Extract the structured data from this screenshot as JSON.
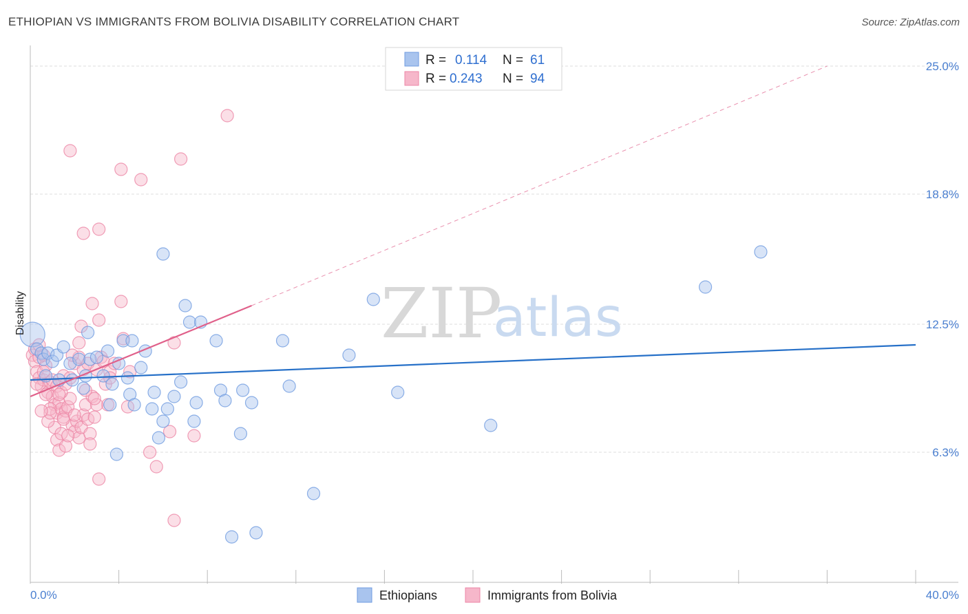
{
  "title": "ETHIOPIAN VS IMMIGRANTS FROM BOLIVIA DISABILITY CORRELATION CHART",
  "source": "Source: ZipAtlas.com",
  "watermark": {
    "zip": "ZIP",
    "atlas": "atlas"
  },
  "colors": {
    "blue_fill": "#a9c4ee",
    "blue_stroke": "#6f9be0",
    "blue_line": "#2670c8",
    "pink_fill": "#f6b7ca",
    "pink_stroke": "#ec86a5",
    "pink_line": "#e0608a",
    "grid": "#dddddd",
    "axis": "#bbbbbb",
    "tick_label": "#4a7fd0"
  },
  "chart_data": {
    "type": "scatter",
    "title": "ETHIOPIAN VS IMMIGRANTS FROM BOLIVIA DISABILITY CORRELATION CHART",
    "xlabel": "",
    "ylabel": "Disability",
    "xlim": [
      0,
      40
    ],
    "ylim": [
      0,
      25.6
    ],
    "x_tick_labels": [
      "0.0%",
      "40.0%"
    ],
    "y_ticks": [
      6.3,
      12.5,
      18.8,
      25.0
    ],
    "y_tick_labels": [
      "6.3%",
      "12.5%",
      "18.8%",
      "25.0%"
    ],
    "grid": true,
    "legend": {
      "placement": "top-center",
      "entries": [
        {
          "r_label": "R =",
          "r_value": "0.114",
          "n_label": "N =",
          "n_value": "61"
        },
        {
          "r_label": "R =",
          "r_value": "0.243",
          "n_label": "N =",
          "n_value": "94"
        }
      ]
    },
    "series": [
      {
        "name": "Ethiopians",
        "color": "blue",
        "trend": {
          "x0": 0,
          "y0": 9.8,
          "x1": 40,
          "y1": 11.5,
          "dashed": false
        },
        "points": [
          [
            0.1,
            12.0,
            1
          ],
          [
            0.3,
            11.3,
            0
          ],
          [
            0.5,
            11.1,
            0
          ],
          [
            0.6,
            10.8,
            0
          ],
          [
            0.8,
            11.1,
            0
          ],
          [
            1.0,
            10.7,
            0
          ],
          [
            1.2,
            11.0,
            0
          ],
          [
            1.5,
            11.4,
            0
          ],
          [
            1.8,
            10.6,
            0
          ],
          [
            0.7,
            10.0,
            0
          ],
          [
            1.3,
            9.8,
            0
          ],
          [
            1.9,
            9.8,
            0
          ],
          [
            2.2,
            10.8,
            0
          ],
          [
            2.5,
            10.0,
            0
          ],
          [
            2.4,
            9.4,
            0
          ],
          [
            2.6,
            12.1,
            0
          ],
          [
            2.7,
            10.8,
            0
          ],
          [
            3.0,
            10.9,
            0
          ],
          [
            3.3,
            10.0,
            0
          ],
          [
            3.5,
            11.2,
            0
          ],
          [
            3.7,
            9.6,
            0
          ],
          [
            4.0,
            10.6,
            0
          ],
          [
            4.2,
            11.7,
            0
          ],
          [
            4.4,
            9.9,
            0
          ],
          [
            4.6,
            11.7,
            0
          ],
          [
            5.0,
            10.4,
            0
          ],
          [
            5.2,
            11.2,
            0
          ],
          [
            4.5,
            9.1,
            0
          ],
          [
            4.7,
            8.6,
            0
          ],
          [
            5.6,
            9.2,
            0
          ],
          [
            6.0,
            15.9,
            0
          ],
          [
            6.2,
            8.4,
            0
          ],
          [
            6.5,
            9.0,
            0
          ],
          [
            6.8,
            9.7,
            0
          ],
          [
            7.0,
            13.4,
            0
          ],
          [
            7.2,
            12.6,
            0
          ],
          [
            7.5,
            8.7,
            0
          ],
          [
            7.7,
            12.6,
            0
          ],
          [
            8.4,
            11.7,
            0
          ],
          [
            8.6,
            9.3,
            0
          ],
          [
            8.8,
            8.8,
            0
          ],
          [
            9.6,
            9.3,
            0
          ],
          [
            10.0,
            8.7,
            0
          ],
          [
            6.0,
            7.8,
            0
          ],
          [
            7.4,
            7.8,
            0
          ],
          [
            5.8,
            7.0,
            0
          ],
          [
            9.5,
            7.2,
            0
          ],
          [
            3.9,
            6.2,
            0
          ],
          [
            11.4,
            11.7,
            0
          ],
          [
            11.7,
            9.5,
            0
          ],
          [
            12.8,
            4.3,
            0
          ],
          [
            14.4,
            11.0,
            0
          ],
          [
            15.5,
            13.7,
            0
          ],
          [
            16.6,
            9.2,
            0
          ],
          [
            20.8,
            7.6,
            0
          ],
          [
            30.5,
            14.3,
            0
          ],
          [
            33.0,
            16.0,
            0
          ],
          [
            9.1,
            2.2,
            0
          ],
          [
            10.2,
            2.4,
            0
          ],
          [
            3.6,
            8.6,
            0
          ],
          [
            5.5,
            8.4,
            0
          ]
        ]
      },
      {
        "name": "Immigrants from Bolivia",
        "color": "pink",
        "trend": {
          "x0": 0,
          "y0": 9.0,
          "x1": 10.0,
          "y1": 13.4,
          "dashed": false
        },
        "trend_extension": {
          "x0": 10.0,
          "y0": 13.4,
          "x1": 36.0,
          "y1": 25.0,
          "dashed": true
        },
        "points": [
          [
            0.1,
            11.0,
            0
          ],
          [
            0.2,
            10.7,
            0
          ],
          [
            0.3,
            10.2,
            0
          ],
          [
            0.4,
            9.9,
            0
          ],
          [
            0.5,
            9.5,
            0
          ],
          [
            0.6,
            9.8,
            0
          ],
          [
            0.7,
            10.5,
            0
          ],
          [
            0.8,
            9.2,
            0
          ],
          [
            0.2,
            11.3,
            0
          ],
          [
            0.4,
            10.9,
            0
          ],
          [
            0.6,
            11.0,
            0
          ],
          [
            0.9,
            9.7,
            0
          ],
          [
            1.0,
            9.0,
            0
          ],
          [
            1.1,
            8.6,
            0
          ],
          [
            1.2,
            8.2,
            0
          ],
          [
            1.3,
            8.7,
            0
          ],
          [
            1.4,
            8.4,
            0
          ],
          [
            1.5,
            8.0,
            0
          ],
          [
            1.6,
            8.3,
            0
          ],
          [
            1.7,
            8.5,
            0
          ],
          [
            1.8,
            8.9,
            0
          ],
          [
            1.9,
            7.6,
            0
          ],
          [
            2.0,
            7.3,
            0
          ],
          [
            2.1,
            7.8,
            0
          ],
          [
            2.2,
            7.0,
            0
          ],
          [
            2.3,
            7.5,
            0
          ],
          [
            2.4,
            8.1,
            0
          ],
          [
            2.5,
            8.6,
            0
          ],
          [
            2.6,
            7.9,
            0
          ],
          [
            2.7,
            7.2,
            0
          ],
          [
            2.8,
            9.0,
            0
          ],
          [
            2.9,
            8.0,
            0
          ],
          [
            1.0,
            9.8,
            0
          ],
          [
            1.2,
            9.5,
            0
          ],
          [
            1.4,
            9.2,
            0
          ],
          [
            1.5,
            10.0,
            0
          ],
          [
            1.6,
            9.6,
            0
          ],
          [
            1.8,
            9.9,
            0
          ],
          [
            2.0,
            10.6,
            0
          ],
          [
            2.2,
            10.9,
            0
          ],
          [
            2.4,
            10.3,
            0
          ],
          [
            2.6,
            10.6,
            0
          ],
          [
            3.0,
            10.3,
            0
          ],
          [
            3.2,
            10.9,
            0
          ],
          [
            3.4,
            9.6,
            0
          ],
          [
            3.6,
            10.2,
            0
          ],
          [
            4.2,
            11.8,
            0
          ],
          [
            4.5,
            10.2,
            0
          ],
          [
            0.9,
            8.4,
            0
          ],
          [
            1.1,
            7.5,
            0
          ],
          [
            1.2,
            6.9,
            0
          ],
          [
            1.3,
            6.4,
            0
          ],
          [
            0.8,
            7.8,
            0
          ],
          [
            0.9,
            8.2,
            0
          ],
          [
            1.4,
            7.2,
            0
          ],
          [
            1.6,
            6.6,
            0
          ],
          [
            2.3,
            12.4,
            0
          ],
          [
            2.2,
            11.6,
            0
          ],
          [
            3.1,
            12.7,
            0
          ],
          [
            2.8,
            13.5,
            0
          ],
          [
            4.1,
            13.6,
            0
          ],
          [
            6.5,
            11.6,
            0
          ],
          [
            3.1,
            17.1,
            0
          ],
          [
            2.4,
            16.9,
            0
          ],
          [
            1.8,
            20.9,
            0
          ],
          [
            4.1,
            20.0,
            0
          ],
          [
            5.0,
            19.5,
            0
          ],
          [
            6.8,
            20.5,
            0
          ],
          [
            8.9,
            22.6,
            0
          ],
          [
            3.1,
            5.0,
            0
          ],
          [
            5.7,
            5.6,
            0
          ],
          [
            6.5,
            3.0,
            0
          ],
          [
            5.4,
            6.3,
            0
          ],
          [
            7.4,
            7.1,
            0
          ],
          [
            6.3,
            7.3,
            0
          ],
          [
            3.5,
            8.6,
            0
          ],
          [
            4.4,
            8.5,
            0
          ],
          [
            2.7,
            6.7,
            0
          ],
          [
            3.0,
            8.6,
            0
          ],
          [
            0.3,
            9.6,
            0
          ],
          [
            0.5,
            8.3,
            0
          ],
          [
            0.6,
            10.2,
            0
          ],
          [
            1.7,
            7.1,
            0
          ],
          [
            2.5,
            9.3,
            0
          ],
          [
            3.3,
            10.7,
            0
          ],
          [
            0.4,
            11.5,
            0
          ],
          [
            1.9,
            11.0,
            0
          ],
          [
            3.8,
            10.6,
            0
          ],
          [
            2.9,
            8.9,
            0
          ],
          [
            3.6,
            9.9,
            0
          ],
          [
            1.5,
            7.9,
            0
          ],
          [
            0.7,
            9.1,
            0
          ],
          [
            2.0,
            8.1,
            0
          ],
          [
            1.3,
            9.1,
            0
          ]
        ]
      }
    ]
  },
  "bottom_legend": [
    {
      "label": "Ethiopians",
      "color": "blue"
    },
    {
      "label": "Immigrants from Bolivia",
      "color": "pink"
    }
  ]
}
